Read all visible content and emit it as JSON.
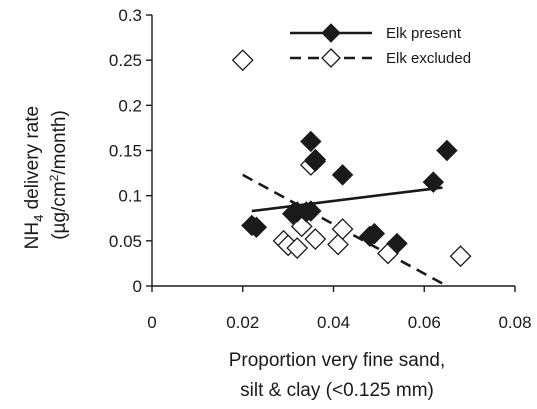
{
  "chart_data": {
    "type": "scatter",
    "title": "",
    "xlabel_lines": [
      "Proportion very fine sand,",
      "silt & clay (<0.125 mm)"
    ],
    "ylabel": {
      "line1_prefix": "NH",
      "line1_sub": "4",
      "line1_suffix": " delivery rate",
      "line2_prefix": "(µg/cm",
      "line2_sup": "2",
      "line2_suffix": "/month)"
    },
    "xlim": [
      0,
      0.08
    ],
    "ylim": [
      0,
      0.3
    ],
    "xticks": [
      {
        "value": 0,
        "label": "0"
      },
      {
        "value": 0.02,
        "label": "0.02"
      },
      {
        "value": 0.04,
        "label": "0.04"
      },
      {
        "value": 0.06,
        "label": "0.06"
      },
      {
        "value": 0.08,
        "label": "0.08"
      }
    ],
    "yticks": [
      {
        "value": 0,
        "label": "0"
      },
      {
        "value": 0.05,
        "label": "0.05"
      },
      {
        "value": 0.1,
        "label": "0.1"
      },
      {
        "value": 0.15,
        "label": "0.15"
      },
      {
        "value": 0.2,
        "label": "0.2"
      },
      {
        "value": 0.25,
        "label": "0.25"
      },
      {
        "value": 0.3,
        "label": "0.3"
      }
    ],
    "grid": false,
    "legend_position": "top-right",
    "series": [
      {
        "name": "Elk present",
        "marker": "diamond-filled",
        "color": "#1a1a1a",
        "line_style": "solid",
        "points": [
          {
            "x": 0.022,
            "y": 0.067
          },
          {
            "x": 0.023,
            "y": 0.065
          },
          {
            "x": 0.031,
            "y": 0.08
          },
          {
            "x": 0.032,
            "y": 0.082
          },
          {
            "x": 0.034,
            "y": 0.082
          },
          {
            "x": 0.035,
            "y": 0.083
          },
          {
            "x": 0.035,
            "y": 0.16
          },
          {
            "x": 0.036,
            "y": 0.14
          },
          {
            "x": 0.036,
            "y": 0.138
          },
          {
            "x": 0.042,
            "y": 0.123
          },
          {
            "x": 0.048,
            "y": 0.055
          },
          {
            "x": 0.049,
            "y": 0.058
          },
          {
            "x": 0.054,
            "y": 0.047
          },
          {
            "x": 0.062,
            "y": 0.115
          },
          {
            "x": 0.065,
            "y": 0.15
          }
        ],
        "trendline": {
          "x": [
            0.022,
            0.064
          ],
          "y": [
            0.083,
            0.109
          ]
        }
      },
      {
        "name": "Elk excluded",
        "marker": "diamond-open",
        "color": "#1a1a1a",
        "line_style": "dashed",
        "points": [
          {
            "x": 0.02,
            "y": 0.25
          },
          {
            "x": 0.029,
            "y": 0.05
          },
          {
            "x": 0.03,
            "y": 0.045
          },
          {
            "x": 0.032,
            "y": 0.042
          },
          {
            "x": 0.033,
            "y": 0.066
          },
          {
            "x": 0.035,
            "y": 0.134
          },
          {
            "x": 0.036,
            "y": 0.052
          },
          {
            "x": 0.041,
            "y": 0.046
          },
          {
            "x": 0.042,
            "y": 0.063
          },
          {
            "x": 0.052,
            "y": 0.036
          },
          {
            "x": 0.068,
            "y": 0.033
          }
        ],
        "trendline": {
          "x": [
            0.02,
            0.065
          ],
          "y": [
            0.123,
            0.0
          ]
        }
      }
    ]
  }
}
